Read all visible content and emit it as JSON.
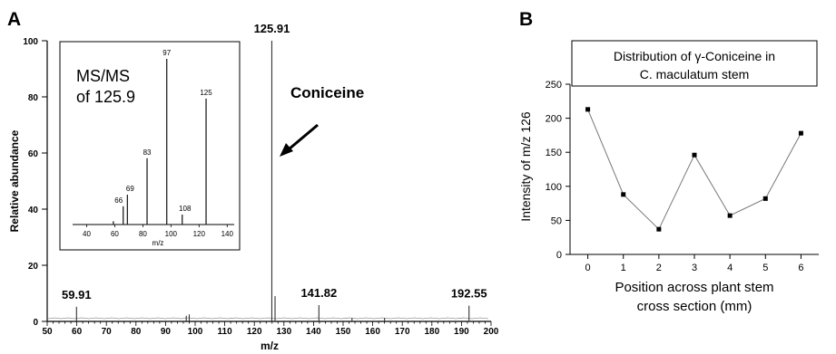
{
  "chart_data": [
    {
      "panel_label": "A",
      "type": "line",
      "xlabel": "m/z",
      "ylabel": "Relative abundance",
      "xlim": [
        50,
        200
      ],
      "ylim": [
        0,
        100
      ],
      "x_ticks": [
        50,
        60,
        70,
        80,
        90,
        100,
        110,
        120,
        130,
        140,
        150,
        160,
        170,
        180,
        190,
        200
      ],
      "y_ticks": [
        0,
        20,
        40,
        60,
        80,
        100
      ],
      "stick_peaks": [
        {
          "x": 59.91,
          "y": 5.2
        },
        {
          "x": 97,
          "y": 2
        },
        {
          "x": 98,
          "y": 2.5
        },
        {
          "x": 125.91,
          "y": 100
        },
        {
          "x": 127,
          "y": 9
        },
        {
          "x": 141.82,
          "y": 5.8
        },
        {
          "x": 153,
          "y": 1.2
        },
        {
          "x": 164,
          "y": 1.2
        },
        {
          "x": 192.55,
          "y": 5.6
        }
      ],
      "peak_labels": [
        {
          "text": "125.91",
          "x": 125.91,
          "y": 100
        },
        {
          "text": "59.91",
          "x": 59.91,
          "y": 5.2
        },
        {
          "text": "141.82",
          "x": 141.82,
          "y": 5.8
        },
        {
          "text": "192.55",
          "x": 192.55,
          "y": 5.6
        }
      ],
      "annotation": {
        "text": "Coniceine",
        "points_to_x": 125.91
      },
      "inset": {
        "title_line1": "MS/MS",
        "title_line2": "of 125.9",
        "xlabel": "m/z",
        "xlim": [
          30,
          145
        ],
        "ylim": [
          0,
          100
        ],
        "x_ticks": [
          40,
          60,
          80,
          100,
          120,
          140
        ],
        "peaks": [
          {
            "x": 59,
            "y": 2
          },
          {
            "x": 66,
            "y": 11
          },
          {
            "x": 69,
            "y": 18
          },
          {
            "x": 83,
            "y": 40
          },
          {
            "x": 97,
            "y": 100
          },
          {
            "x": 108,
            "y": 6
          },
          {
            "x": 125,
            "y": 76
          }
        ],
        "peak_labels": [
          "66",
          "69",
          "83",
          "97",
          "108",
          "125"
        ]
      }
    },
    {
      "panel_label": "B",
      "type": "line",
      "title_line1": "Distribution of γ-Coniceine in",
      "title_line2": "C. maculatum stem",
      "xlabel_line1": "Position across plant stem",
      "xlabel_line2": "cross section (mm)",
      "ylabel": "Intensity of m/z 126",
      "x_ticks": [
        0,
        1,
        2,
        3,
        4,
        5,
        6
      ],
      "y_ticks": [
        0,
        50,
        100,
        150,
        200,
        250
      ],
      "xlim": [
        -0.5,
        6.5
      ],
      "ylim": [
        0,
        250
      ],
      "x": [
        0,
        1,
        2,
        3,
        4,
        5,
        6
      ],
      "y": [
        213,
        88,
        37,
        146,
        57,
        82,
        178
      ]
    }
  ]
}
